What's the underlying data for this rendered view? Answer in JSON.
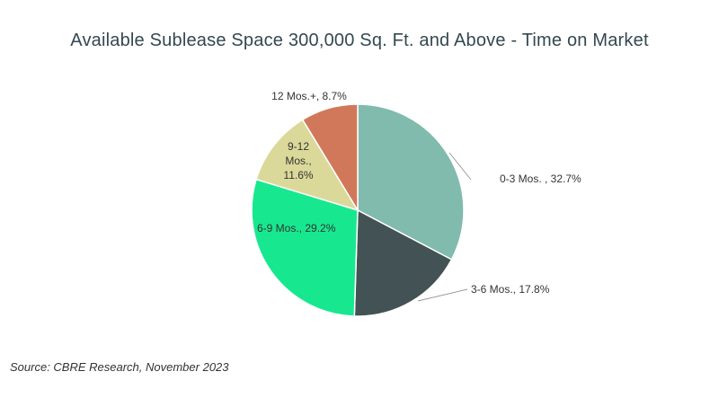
{
  "title": "Available Sublease Space 300,000 Sq. Ft. and Above - Time on Market",
  "source": "Source: CBRE Research, November 2023",
  "chart_data": {
    "type": "pie",
    "title": "Available Sublease Space 300,000 Sq. Ft. and Above - Time on Market",
    "start_angle": "12 o'clock",
    "direction": "clockwise",
    "slices": [
      {
        "label": "0-3 Mos. , 32.7%",
        "value": 32.7,
        "color": "#80bbad"
      },
      {
        "label": "3-6 Mos., 17.8%",
        "value": 17.8,
        "color": "#435254"
      },
      {
        "label": "6-9 Mos., 29.2%",
        "value": 29.2,
        "color": "#17e88f"
      },
      {
        "label": "9-12 Mos., 11.6%",
        "value": 11.6,
        "color": "#dbd99a"
      },
      {
        "label": "12 Mos.+, 8.7%",
        "value": 8.7,
        "color": "#d2785a"
      }
    ]
  }
}
